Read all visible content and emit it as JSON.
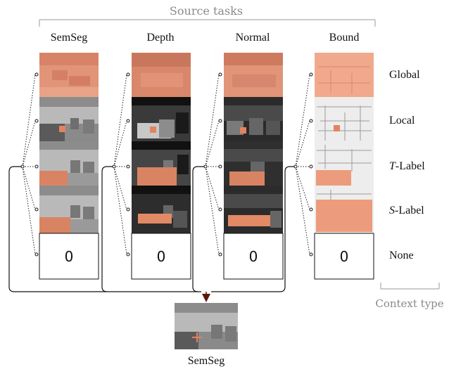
{
  "header": {
    "source_tasks_label": "Source tasks"
  },
  "columns": [
    {
      "id": "semseg",
      "label": "SemSeg"
    },
    {
      "id": "depth",
      "label": "Depth"
    },
    {
      "id": "normal",
      "label": "Normal"
    },
    {
      "id": "bound",
      "label": "Bound"
    }
  ],
  "rows": [
    {
      "id": "global",
      "label": "Global"
    },
    {
      "id": "local",
      "label": "Local"
    },
    {
      "id": "tlabel",
      "label_italic": "T",
      "label_rest": "-Label"
    },
    {
      "id": "slabel",
      "label_italic": "S",
      "label_rest": "-Label"
    },
    {
      "id": "none",
      "label": "None"
    }
  ],
  "none_value": "0",
  "context_type_label": "Context type",
  "output": {
    "label": "SemSeg"
  },
  "colors": {
    "accent": "#dd8a6c",
    "gray_text": "#8a8a8a",
    "arrow": "#5a1a0a"
  }
}
